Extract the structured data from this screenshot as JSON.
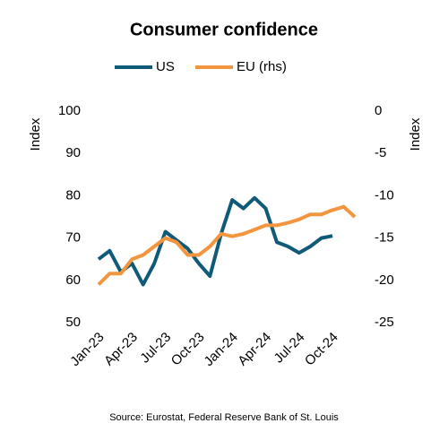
{
  "chart_data": {
    "type": "line",
    "title": "Consumer confidence",
    "source": "Source: Eurostat, Federal Reserve Bank of St. Louis",
    "y_label": "Index",
    "y2_label": "Index",
    "categories": [
      "Jan-23",
      null,
      null,
      "Apr-23",
      null,
      null,
      "Jul-23",
      null,
      null,
      "Oct-23",
      null,
      null,
      "Jan-24",
      null,
      null,
      "Apr-24",
      null,
      null,
      "Jul-24",
      null,
      null,
      "Oct-24",
      null,
      null
    ],
    "series": [
      {
        "name": "US",
        "color": "#0f5a78",
        "values": [
          65,
          67,
          62,
          64,
          59,
          64,
          71.5,
          69.5,
          67.5,
          64,
          61,
          71,
          79,
          77,
          79.5,
          77,
          69,
          68,
          66.5,
          68,
          70,
          70.5,
          null,
          null
        ]
      },
      {
        "name": "EU (rhs)",
        "color": "#f3953f",
        "axis": "y2",
        "values": [
          -20.5,
          -19.2,
          -19.2,
          -17.5,
          -17,
          -16,
          -15,
          -15.5,
          -17,
          -17,
          -16,
          -14.5,
          -14.8,
          -14.5,
          -14,
          -13.5,
          -13.5,
          -13.2,
          -12.8,
          -12.2,
          -12.2,
          -11.7,
          -11.3,
          -12.5
        ]
      }
    ],
    "ylim": [
      50,
      100
    ],
    "yticks": [
      50,
      60,
      70,
      80,
      90,
      100
    ],
    "y2lim": [
      -25,
      0
    ],
    "y2ticks": [
      -25,
      -20,
      -15,
      -10,
      -5,
      0
    ],
    "legend": "top"
  }
}
